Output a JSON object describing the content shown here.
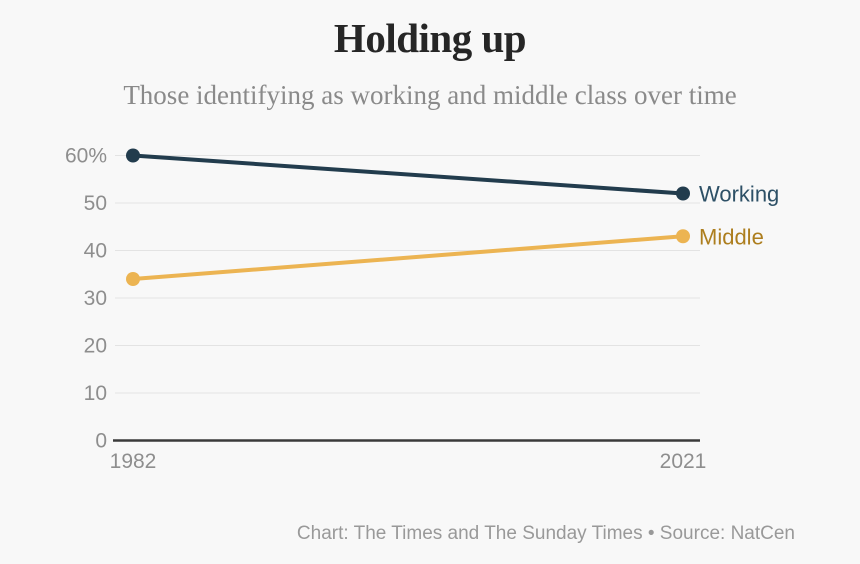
{
  "title": "Holding up",
  "subtitle": "Those identifying as working and middle class over time",
  "footer": "Chart: The Times and The Sunday Times • Source: NatCen",
  "colors": {
    "background": "#f8f8f8",
    "title": "#262626",
    "subtitle": "#8a8a8a",
    "axis_label": "#8e8e8e",
    "axis_line": "#3a3a3a",
    "gridline": "#e3e3e3"
  },
  "chart_data": {
    "type": "line",
    "x": [
      "1982",
      "2021"
    ],
    "series": [
      {
        "name": "Working",
        "values": [
          60,
          52
        ],
        "line_color": "#223c4d",
        "label_color": "#2d5066"
      },
      {
        "name": "Middle",
        "values": [
          34,
          43
        ],
        "line_color": "#ecb452",
        "label_color": "#ad7e1e"
      }
    ],
    "ylim": [
      0,
      60
    ],
    "yticks": [
      0,
      10,
      20,
      30,
      40,
      50,
      60
    ],
    "ytick_top_label": "60%",
    "xlabel": "",
    "ylabel": "",
    "grid": "horizontal",
    "legend_position": "end-of-line"
  }
}
